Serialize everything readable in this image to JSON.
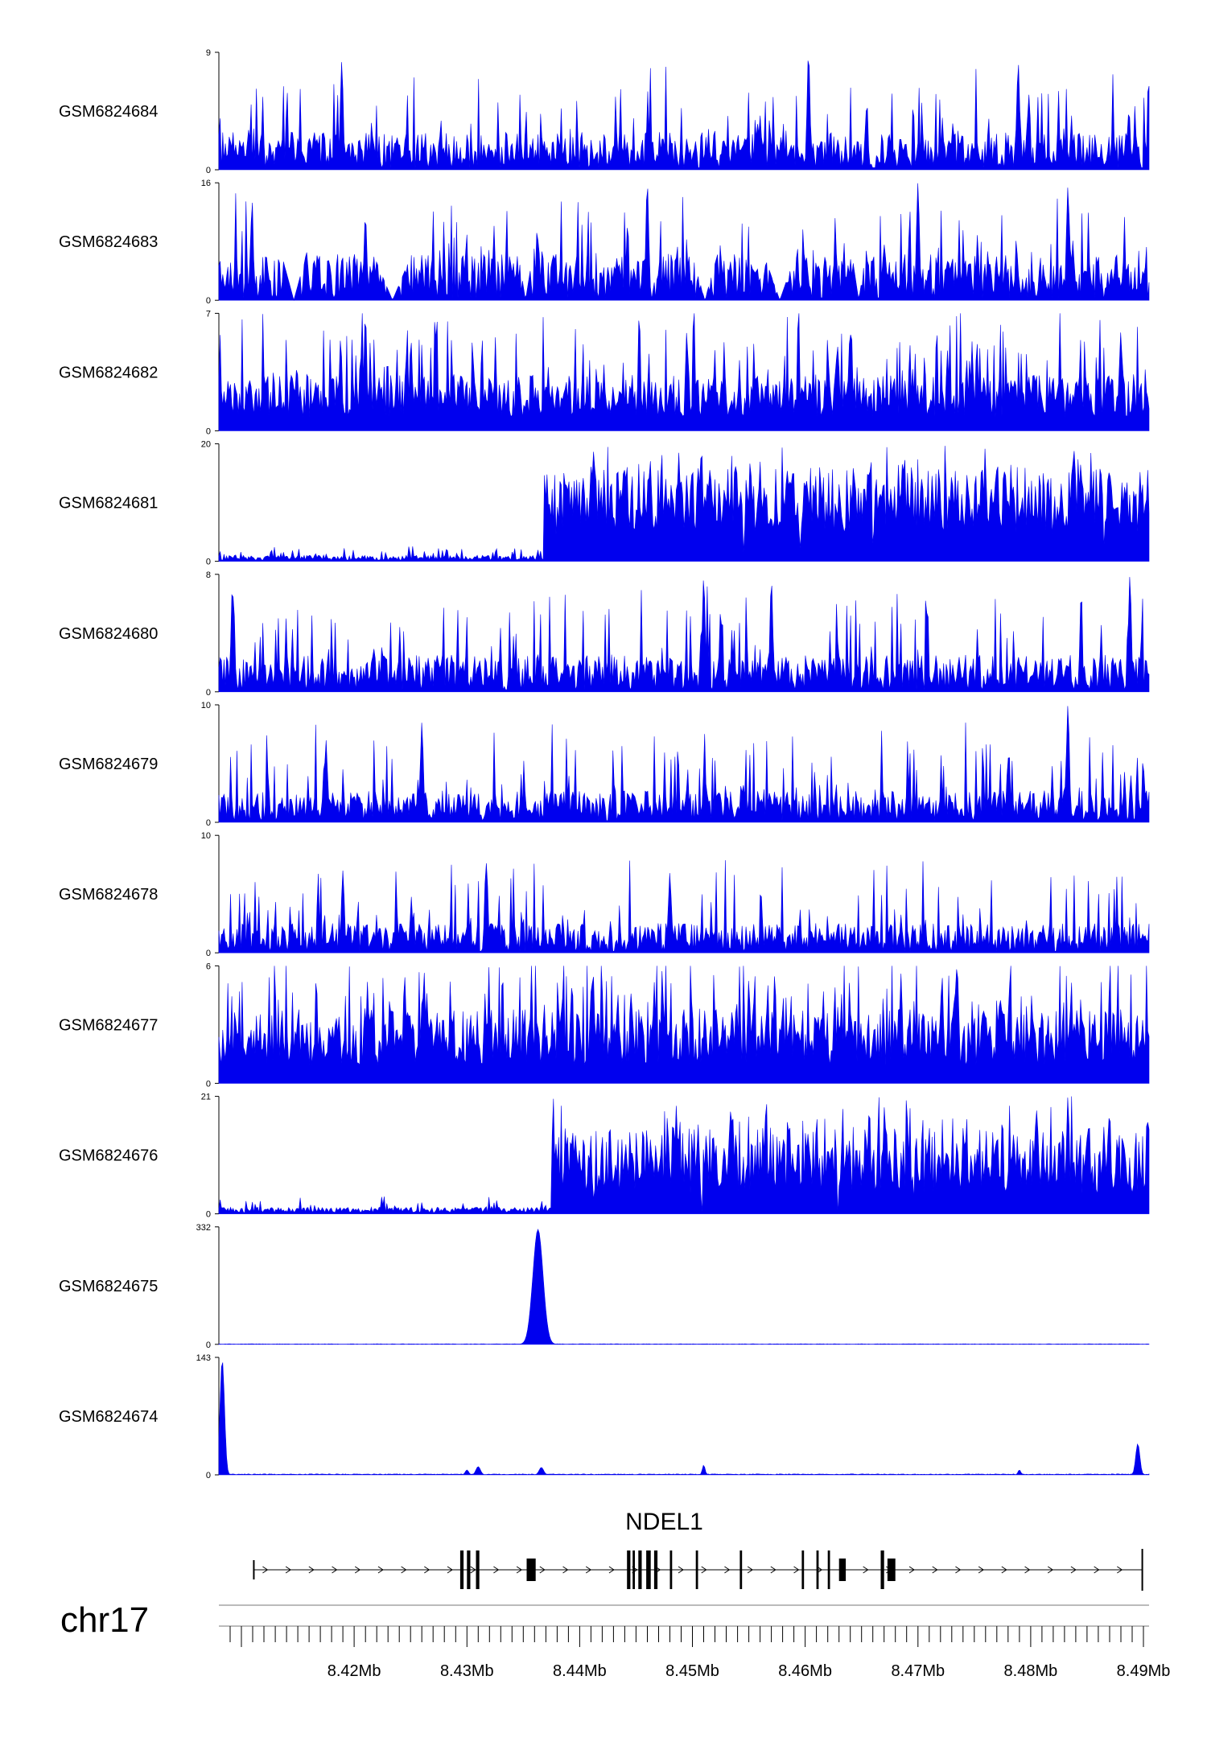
{
  "chart_data": {
    "type": "area",
    "chromosome": "chr17",
    "x_range_mb": [
      8.408,
      8.4905
    ],
    "x_ticks_mb": [
      8.42,
      8.43,
      8.44,
      8.45,
      8.46,
      8.47,
      8.48,
      8.49
    ],
    "x_tick_labels": [
      "8.42Mb",
      "8.43Mb",
      "8.44Mb",
      "8.45Mb",
      "8.46Mb",
      "8.47Mb",
      "8.48Mb",
      "8.49Mb"
    ],
    "fill_color": "#0000ee",
    "tracks": [
      {
        "name": "GSM6824684",
        "ymin_label": "0",
        "ymax_label": "9",
        "ymax": 9,
        "profile": "sparse",
        "base": 1.6,
        "seed": 11,
        "peaks": [
          [
            8.4189,
            8.3
          ],
          [
            8.4603,
            9.0
          ],
          [
            8.4789,
            8.2
          ]
        ]
      },
      {
        "name": "GSM6824683",
        "ymin_label": "0",
        "ymax_label": "16",
        "ymax": 16,
        "profile": "gapped",
        "base": 3.5,
        "seed": 23,
        "peaks": [
          [
            8.446,
            16.0
          ],
          [
            8.47,
            16.0
          ],
          [
            8.4833,
            15.5
          ],
          [
            8.421,
            11.5
          ],
          [
            8.4109,
            11.0
          ]
        ],
        "gaps": [
          [
            8.4133,
            8.416
          ],
          [
            8.4213,
            8.4255
          ],
          [
            8.4344,
            8.436
          ],
          [
            8.4458,
            8.447
          ],
          [
            8.4497,
            8.4525
          ],
          [
            8.456,
            8.4595
          ],
          [
            8.464,
            8.4655
          ],
          [
            8.48,
            8.481
          ],
          [
            8.486,
            8.487
          ]
        ]
      },
      {
        "name": "GSM6824682",
        "ymin_label": "0",
        "ymax_label": "7",
        "ymax": 7,
        "profile": "dense",
        "base": 1.6,
        "seed": 37,
        "peaks": [
          [
            8.421,
            6.9
          ],
          [
            8.4188,
            5.5
          ],
          [
            8.4495,
            5.9
          ],
          [
            8.488,
            5.8
          ]
        ]
      },
      {
        "name": "GSM6824681",
        "ymin_label": "0",
        "ymax_label": "20",
        "ymax": 20,
        "profile": "step",
        "base": 0.6,
        "seed": 41,
        "step_mb": 8.4368,
        "high_base": 10.5,
        "noise_low": 1.2,
        "noise_high": 7.0,
        "peaks": [
          [
            8.4508,
            19.5
          ],
          [
            8.4488,
            18.5
          ],
          [
            8.4838,
            18.5
          ],
          [
            8.456,
            17.0
          ]
        ]
      },
      {
        "name": "GSM6824680",
        "ymin_label": "0",
        "ymax_label": "8",
        "ymax": 8,
        "profile": "sparse",
        "base": 1.4,
        "seed": 53,
        "peaks": [
          [
            8.4888,
            7.9
          ],
          [
            8.451,
            7.8
          ],
          [
            8.457,
            7.6
          ],
          [
            8.4092,
            7.2
          ]
        ]
      },
      {
        "name": "GSM6824679",
        "ymin_label": "0",
        "ymax_label": "10",
        "ymax": 10,
        "profile": "sparse",
        "base": 1.5,
        "seed": 67,
        "peaks": [
          [
            8.4833,
            10.0
          ],
          [
            8.426,
            8.5
          ],
          [
            8.478,
            5.5
          ],
          [
            8.4175,
            7.0
          ]
        ]
      },
      {
        "name": "GSM6824678",
        "ymin_label": "0",
        "ymax_label": "10",
        "ymax": 10,
        "profile": "sparse",
        "base": 1.4,
        "seed": 71,
        "peaks": [
          [
            8.4317,
            7.7
          ],
          [
            8.448,
            6.8
          ],
          [
            8.419,
            7.0
          ]
        ]
      },
      {
        "name": "GSM6824677",
        "ymin_label": "0",
        "ymax_label": "6",
        "ymax": 6,
        "profile": "dense",
        "base": 1.8,
        "seed": 83,
        "peaks": [
          [
            8.4262,
            5.7
          ],
          [
            8.4573,
            5.6
          ],
          [
            8.4685,
            5.6
          ],
          [
            8.455,
            5.3
          ]
        ]
      },
      {
        "name": "GSM6824676",
        "ymin_label": "0",
        "ymax_label": "21",
        "ymax": 21,
        "profile": "step",
        "base": 0.7,
        "seed": 97,
        "step_mb": 8.4375,
        "high_base": 9.5,
        "noise_low": 1.3,
        "noise_high": 7.5,
        "peaks": [
          [
            8.4833,
            21.0
          ],
          [
            8.4805,
            19.0
          ],
          [
            8.487,
            18.5
          ],
          [
            8.4505,
            16.0
          ]
        ]
      },
      {
        "name": "GSM6824675",
        "ymin_label": "0",
        "ymax_label": "332",
        "ymax": 332,
        "profile": "bigpeak",
        "base": 1.2,
        "seed": 101,
        "peaks": [
          [
            8.4363,
            325,
            0.00045
          ]
        ]
      },
      {
        "name": "GSM6824674",
        "ymin_label": "0",
        "ymax_label": "143",
        "ymax": 143,
        "profile": "bigpeak",
        "base": 1.0,
        "seed": 113,
        "peaks": [
          [
            8.4083,
            140,
            0.0002
          ],
          [
            8.4895,
            38,
            0.00018
          ],
          [
            8.4366,
            9,
            0.0002
          ],
          [
            8.431,
            10,
            0.0002
          ],
          [
            8.43,
            6,
            0.00015
          ],
          [
            8.451,
            12,
            0.00012
          ],
          [
            8.479,
            6,
            0.00012
          ]
        ]
      }
    ],
    "gene": {
      "name": "NDEL1",
      "strand": "+",
      "start_mb": 8.4111,
      "end_mb": 8.4899,
      "exons": [
        [
          8.4294,
          8.4297
        ],
        [
          8.43,
          8.4303
        ],
        [
          8.4308,
          8.4311
        ],
        [
          8.4353,
          8.4361
        ],
        [
          8.4442,
          8.4445
        ],
        [
          8.4447,
          8.4449
        ],
        [
          8.4452,
          8.4455
        ],
        [
          8.4459,
          8.4463
        ],
        [
          8.4466,
          8.4469
        ],
        [
          8.448,
          8.4482
        ],
        [
          8.4503,
          8.4505
        ],
        [
          8.4542,
          8.4544
        ],
        [
          8.4597,
          8.4599
        ],
        [
          8.461,
          8.4612
        ],
        [
          8.462,
          8.4622
        ],
        [
          8.463,
          8.4636
        ],
        [
          8.4667,
          8.467
        ],
        [
          8.4673,
          8.468
        ]
      ]
    }
  }
}
